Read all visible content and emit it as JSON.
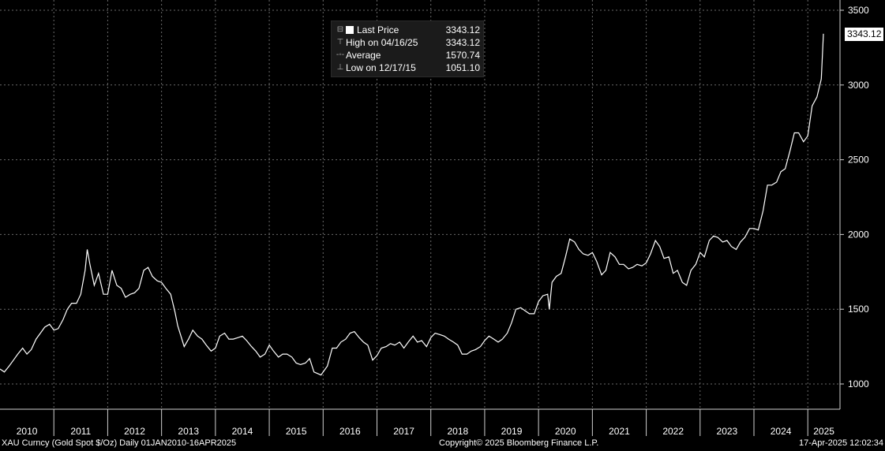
{
  "legend": {
    "last_label": "Last Price",
    "last_value": "3343.12",
    "high_label": "High on 04/16/25",
    "high_value": "3343.12",
    "avg_label": "Average",
    "avg_value": "1570.74",
    "low_label": "Low on 12/17/15",
    "low_value": "1051.10"
  },
  "price_tag": "3343.12",
  "footer": {
    "ticker": "XAU Curncy (Gold Spot  $/Oz)  Daily 01JAN2010-16APR2025",
    "copyright": "Copyright© 2025 Bloomberg Finance L.P.",
    "timestamp": "17-Apr-2025 12:02:34"
  },
  "colors": {
    "background": "#000000",
    "line": "#ffffff",
    "grid": "#6a6a6a"
  },
  "chart_data": {
    "type": "line",
    "ylim": [
      800,
      3500
    ],
    "xlim": [
      2010.0,
      2025.29
    ],
    "yticks": [
      1000,
      1500,
      2000,
      2500,
      3000,
      3500
    ],
    "ytick_labels": [
      "1000",
      "1500",
      "2000",
      "2500",
      "3000",
      "3500"
    ],
    "xtick_labels": [
      "2010",
      "2011",
      "2012",
      "2013",
      "2014",
      "2015",
      "2016",
      "2017",
      "2018",
      "2019",
      "2020",
      "2021",
      "2022",
      "2023",
      "2024",
      "2025"
    ],
    "grid": true,
    "series": [
      {
        "x": [
          2010.0,
          2010.08,
          2010.17,
          2010.25,
          2010.33,
          2010.42,
          2010.5,
          2010.58,
          2010.67,
          2010.75,
          2010.83,
          2010.92,
          2011.0,
          2011.08,
          2011.17,
          2011.25,
          2011.33,
          2011.42,
          2011.5,
          2011.58,
          2011.62,
          2011.67,
          2011.75,
          2011.83,
          2011.92,
          2012.0,
          2012.08,
          2012.17,
          2012.25,
          2012.33,
          2012.42,
          2012.5,
          2012.58,
          2012.67,
          2012.75,
          2012.83,
          2012.92,
          2013.0,
          2013.08,
          2013.17,
          2013.25,
          2013.3,
          2013.42,
          2013.5,
          2013.58,
          2013.67,
          2013.75,
          2013.83,
          2013.92,
          2014.0,
          2014.08,
          2014.17,
          2014.25,
          2014.33,
          2014.42,
          2014.5,
          2014.58,
          2014.67,
          2014.75,
          2014.83,
          2014.92,
          2015.0,
          2015.08,
          2015.17,
          2015.25,
          2015.33,
          2015.42,
          2015.5,
          2015.58,
          2015.67,
          2015.75,
          2015.83,
          2015.96,
          2016.08,
          2016.17,
          2016.25,
          2016.33,
          2016.42,
          2016.5,
          2016.58,
          2016.67,
          2016.75,
          2016.83,
          2016.92,
          2017.0,
          2017.08,
          2017.17,
          2017.25,
          2017.33,
          2017.42,
          2017.5,
          2017.58,
          2017.67,
          2017.75,
          2017.83,
          2017.92,
          2018.0,
          2018.08,
          2018.17,
          2018.25,
          2018.33,
          2018.42,
          2018.5,
          2018.58,
          2018.67,
          2018.75,
          2018.83,
          2018.92,
          2019.0,
          2019.08,
          2019.17,
          2019.25,
          2019.33,
          2019.42,
          2019.5,
          2019.58,
          2019.67,
          2019.75,
          2019.83,
          2019.92,
          2020.0,
          2020.08,
          2020.17,
          2020.2,
          2020.25,
          2020.33,
          2020.42,
          2020.5,
          2020.58,
          2020.67,
          2020.75,
          2020.83,
          2020.92,
          2021.0,
          2021.08,
          2021.17,
          2021.25,
          2021.33,
          2021.42,
          2021.5,
          2021.58,
          2021.67,
          2021.75,
          2021.83,
          2021.92,
          2022.0,
          2022.08,
          2022.17,
          2022.25,
          2022.33,
          2022.42,
          2022.5,
          2022.58,
          2022.67,
          2022.75,
          2022.83,
          2022.92,
          2023.0,
          2023.08,
          2023.17,
          2023.25,
          2023.33,
          2023.42,
          2023.5,
          2023.58,
          2023.67,
          2023.75,
          2023.83,
          2023.92,
          2024.0,
          2024.08,
          2024.17,
          2024.25,
          2024.33,
          2024.42,
          2024.5,
          2024.58,
          2024.67,
          2024.75,
          2024.83,
          2024.92,
          2025.0,
          2025.08,
          2025.17,
          2025.25,
          2025.29
        ],
        "y": [
          1100,
          1080,
          1120,
          1160,
          1200,
          1240,
          1200,
          1230,
          1300,
          1340,
          1380,
          1400,
          1360,
          1370,
          1430,
          1500,
          1540,
          1540,
          1600,
          1760,
          1900,
          1800,
          1660,
          1740,
          1600,
          1600,
          1760,
          1660,
          1640,
          1580,
          1600,
          1610,
          1640,
          1760,
          1780,
          1720,
          1690,
          1680,
          1640,
          1600,
          1480,
          1390,
          1250,
          1300,
          1360,
          1320,
          1300,
          1260,
          1220,
          1240,
          1320,
          1340,
          1300,
          1300,
          1310,
          1320,
          1290,
          1250,
          1220,
          1180,
          1200,
          1260,
          1220,
          1180,
          1200,
          1200,
          1180,
          1140,
          1130,
          1140,
          1170,
          1080,
          1060,
          1120,
          1240,
          1240,
          1280,
          1300,
          1340,
          1350,
          1310,
          1280,
          1260,
          1160,
          1190,
          1240,
          1250,
          1270,
          1260,
          1280,
          1240,
          1280,
          1320,
          1280,
          1290,
          1250,
          1310,
          1340,
          1330,
          1320,
          1300,
          1280,
          1260,
          1200,
          1200,
          1220,
          1230,
          1250,
          1290,
          1320,
          1300,
          1280,
          1300,
          1340,
          1410,
          1500,
          1510,
          1490,
          1470,
          1470,
          1550,
          1590,
          1600,
          1500,
          1680,
          1720,
          1740,
          1850,
          1970,
          1950,
          1900,
          1870,
          1860,
          1880,
          1820,
          1730,
          1760,
          1880,
          1850,
          1800,
          1800,
          1770,
          1780,
          1800,
          1790,
          1810,
          1870,
          1960,
          1920,
          1840,
          1850,
          1740,
          1760,
          1680,
          1660,
          1760,
          1800,
          1880,
          1850,
          1960,
          1990,
          1980,
          1950,
          1960,
          1920,
          1900,
          1950,
          1980,
          2040,
          2040,
          2030,
          2160,
          2330,
          2330,
          2350,
          2420,
          2440,
          2560,
          2680,
          2680,
          2620,
          2660,
          2860,
          2920,
          3040,
          3343
        ]
      }
    ]
  }
}
